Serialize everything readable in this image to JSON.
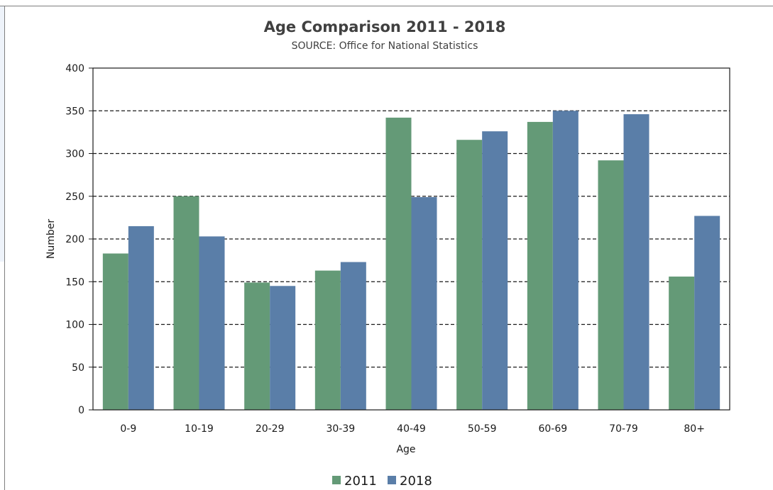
{
  "chart_data": {
    "type": "bar",
    "title": "Age Comparison 2011 - 2018",
    "subtitle": "SOURCE: Office for National Statistics",
    "xlabel": "Age",
    "ylabel": "Number",
    "categories": [
      "0-9",
      "10-19",
      "20-29",
      "30-39",
      "40-49",
      "50-59",
      "60-69",
      "70-79",
      "80+"
    ],
    "series": [
      {
        "name": "2011",
        "color": "#649a77",
        "values": [
          183,
          250,
          149,
          163,
          342,
          316,
          337,
          292,
          156
        ]
      },
      {
        "name": "2018",
        "color": "#5a7ea8",
        "values": [
          215,
          203,
          145,
          173,
          249,
          326,
          350,
          346,
          227
        ]
      }
    ],
    "ylim": [
      0,
      400
    ],
    "yticks": [
      0,
      50,
      100,
      150,
      200,
      250,
      300,
      350,
      400
    ],
    "grid": true,
    "grid_style": "dashed",
    "legend_position": "bottom"
  }
}
